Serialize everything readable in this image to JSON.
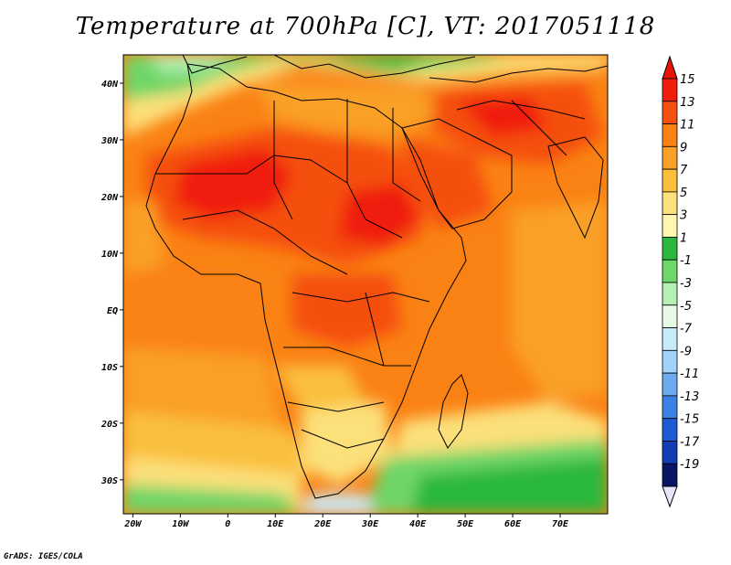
{
  "title": "Temperature at 700hPa [C], VT: 2017051118",
  "credit": "GrADS: IGES/COLA",
  "map": {
    "lat_labels": [
      "40N",
      "30N",
      "20N",
      "10N",
      "EQ",
      "10S",
      "20S",
      "30S"
    ],
    "lon_labels": [
      "20W",
      "10W",
      "0",
      "10E",
      "20E",
      "30E",
      "40E",
      "50E",
      "60E",
      "70E"
    ],
    "lat_range": [
      -36,
      45
    ],
    "lon_range": [
      -22,
      80
    ]
  },
  "colorbar": {
    "labels": [
      "15",
      "13",
      "11",
      "9",
      "7",
      "5",
      "3",
      "1",
      "-1",
      "-3",
      "-5",
      "-7",
      "-9",
      "-11",
      "-13",
      "-15",
      "-17",
      "-19"
    ],
    "colors": [
      "#f01e0a",
      "#f5500f",
      "#fa8214",
      "#faa028",
      "#fac03c",
      "#fce07a",
      "#fff7b0",
      "#2cb83c",
      "#6fd668",
      "#b4f0b4",
      "#e6fae6",
      "#c8ebfa",
      "#a0d2fa",
      "#6eaaf0",
      "#3c82e6",
      "#1e5ad2",
      "#143cb4",
      "#0a1464"
    ]
  }
}
